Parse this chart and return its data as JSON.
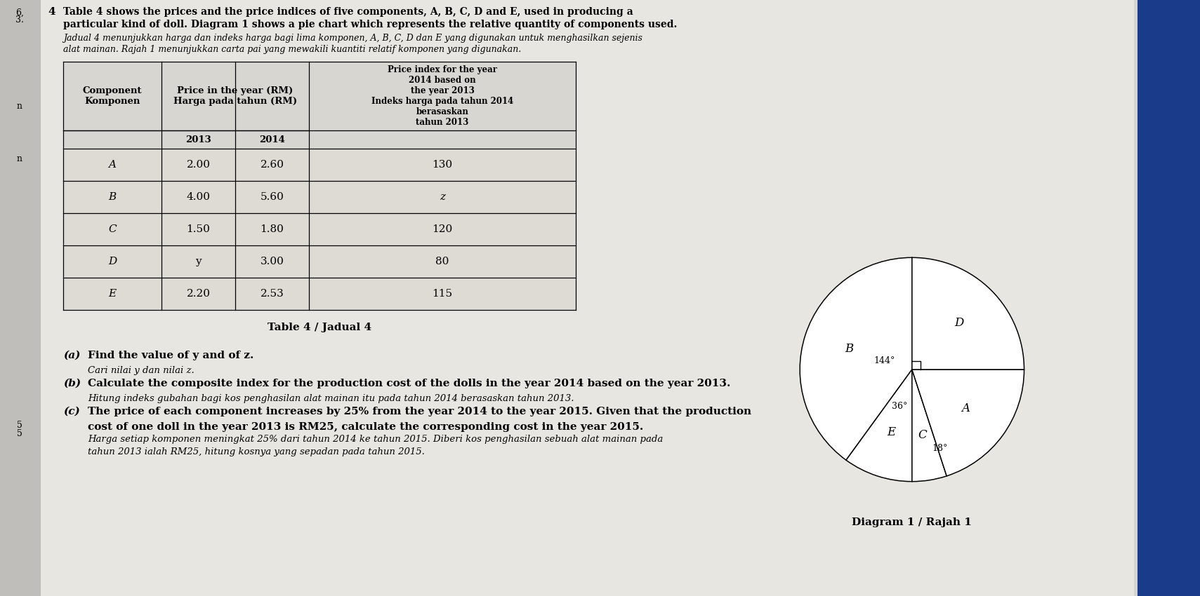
{
  "intro_en_1": "Table 4 shows the prices and the price indices of five components, A, B, C, D and E, used in producing a",
  "intro_en_2": "particular kind of doll. Diagram 1 shows a pie chart which represents the relative quantity of components used.",
  "intro_my_1": "Jadual 4 menunjukkan harga dan indeks harga bagi lima komponen, A, B, C, D dan E yang digunakan untuk menghasilkan sejenis",
  "intro_my_2": "alat mainan. Rajah 1 menunjukkan carta pai yang mewakili kuantiti relatif komponen yang digunakan.",
  "table_rows": [
    [
      "A",
      "2.00",
      "2.60",
      "130"
    ],
    [
      "B",
      "4.00",
      "5.60",
      "z"
    ],
    [
      "C",
      "1.50",
      "1.80",
      "120"
    ],
    [
      "D",
      "y",
      "3.00",
      "80"
    ],
    [
      "E",
      "2.20",
      "2.53",
      "115"
    ]
  ],
  "table_caption": "Table 4 / Jadual 4",
  "diagram_caption": "Diagram 1 / Rajah 1",
  "pie_order_ccw": [
    [
      "B",
      144
    ],
    [
      "E",
      36
    ],
    [
      "C",
      18
    ],
    [
      "A",
      72
    ],
    [
      "D",
      90
    ]
  ],
  "qa_lines": [
    [
      "(a)",
      "Find the value of y and of z.",
      false
    ],
    [
      "",
      "Cari nilai y dan nilai z.",
      true
    ],
    [
      "(b)",
      "Calculate the composite index for the production cost of the dolls in the year 2014 based on the year 2013.",
      false
    ],
    [
      "",
      "Hitung indeks gubahan bagi kos penghasilan alat mainan itu pada tahun 2014 berasaskan tahun 2013.",
      true
    ],
    [
      "(c)",
      "The price of each component increases by 25% from the year 2014 to the year 2015. Given that the production",
      false
    ],
    [
      "",
      "cost of one doll in the year 2013 is RM25, calculate the corresponding cost in the year 2015.",
      false
    ],
    [
      "",
      "Harga setiap komponen meningkat 25% dari tahun 2014 ke tahun 2015. Diberi kos penghasilan sebuah alat mainan pada",
      true
    ],
    [
      "",
      "tahun 2013 ialah RM25, hitung kosnya yang sepadan pada tahun 2015.",
      true
    ]
  ],
  "page_bg": "#d4d4d4",
  "paper_bg": "#e8e6e0",
  "table_header_bg": "#d0cec8",
  "right_blue": "#1a3a8a"
}
